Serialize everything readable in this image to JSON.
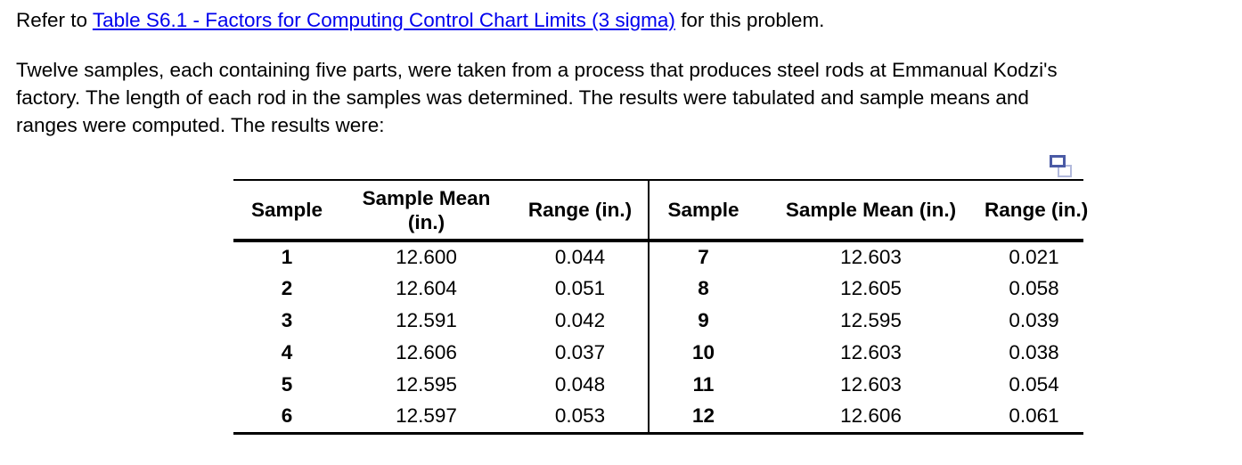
{
  "intro": {
    "prefix": "Refer to ",
    "link_text": "Table S6.1 - Factors for Computing Control Chart Limits (3 sigma)",
    "suffix": " for this problem."
  },
  "paragraph_lines": [
    "Twelve samples, each containing five parts, were taken from a process that produces steel rods at Emmanual Kodzi's",
    "factory. The length of each rod in the samples was determined. The results were tabulated and sample means and",
    "ranges were computed. The results were:"
  ],
  "colors": {
    "link": "#0000EE",
    "copy_icon_front": "#4a5aa5",
    "copy_icon_back": "#b2b9dc",
    "text": "#000000",
    "rule": "#000000"
  },
  "table": {
    "left": {
      "headers": [
        "Sample",
        "Sample Mean (in.)",
        "Range (in.)"
      ],
      "rows": [
        [
          "1",
          "12.600",
          "0.044"
        ],
        [
          "2",
          "12.604",
          "0.051"
        ],
        [
          "3",
          "12.591",
          "0.042"
        ],
        [
          "4",
          "12.606",
          "0.037"
        ],
        [
          "5",
          "12.595",
          "0.048"
        ],
        [
          "6",
          "12.597",
          "0.053"
        ]
      ]
    },
    "right": {
      "headers": [
        "Sample",
        "Sample Mean (in.)",
        "Range (in.)"
      ],
      "rows": [
        [
          "7",
          "12.603",
          "0.021"
        ],
        [
          "8",
          "12.605",
          "0.058"
        ],
        [
          "9",
          "12.595",
          "0.039"
        ],
        [
          "10",
          "12.603",
          "0.038"
        ],
        [
          "11",
          "12.603",
          "0.054"
        ],
        [
          "12",
          "12.606",
          "0.061"
        ]
      ]
    }
  }
}
